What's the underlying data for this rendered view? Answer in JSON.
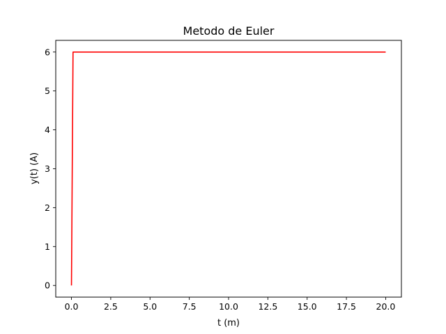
{
  "chart_data": {
    "type": "line",
    "title": "Metodo de Euler",
    "xlabel": "t (m)",
    "ylabel": "y(t) (A)",
    "xlim": [
      -1.0,
      21.0
    ],
    "ylim": [
      -0.3,
      6.3
    ],
    "xticks": [
      0.0,
      2.5,
      5.0,
      7.5,
      10.0,
      12.5,
      15.0,
      17.5,
      20.0
    ],
    "xtick_labels": [
      "0.0",
      "2.5",
      "5.0",
      "7.5",
      "10.0",
      "12.5",
      "15.0",
      "17.5",
      "20.0"
    ],
    "yticks": [
      0,
      1,
      2,
      3,
      4,
      5,
      6
    ],
    "ytick_labels": [
      "0",
      "1",
      "2",
      "3",
      "4",
      "5",
      "6"
    ],
    "grid": false,
    "series": [
      {
        "color": "#ff0000",
        "x": [
          0.0,
          0.1,
          20.0
        ],
        "y": [
          0.0,
          6.0,
          6.0
        ]
      }
    ]
  }
}
